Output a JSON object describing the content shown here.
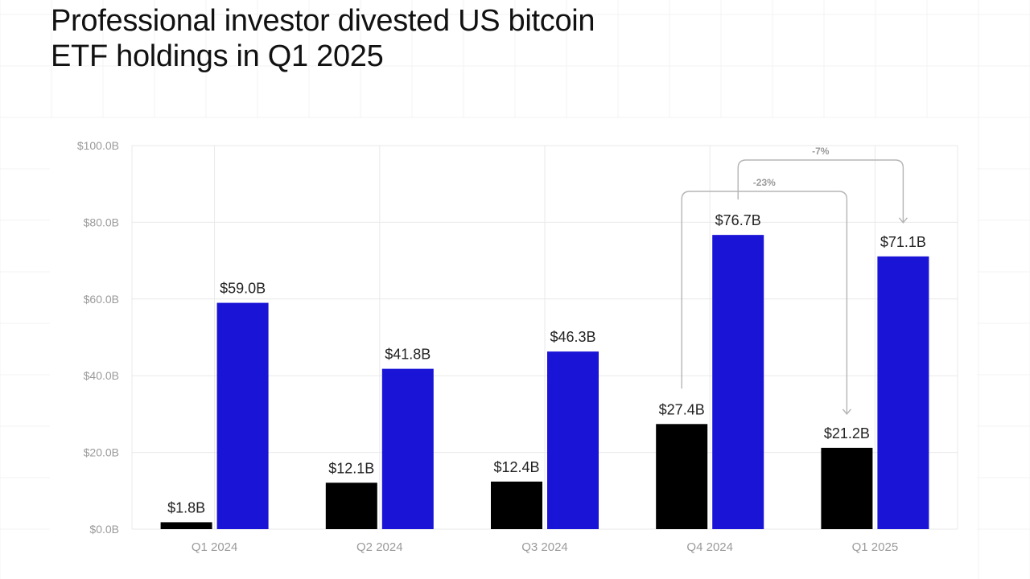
{
  "title": {
    "line1": "Professional investor divested US bitcoin",
    "line2": "ETF holdings in Q1 2025"
  },
  "colors": {
    "series_a": "#000000",
    "series_b": "#1a14d6",
    "label": "#222222",
    "tick": "#9a9a9a",
    "grid": "#e9e9e9",
    "annotation": "#b5b5b5",
    "annotation_text": "#9a9a9a"
  },
  "chart_data": {
    "type": "bar",
    "title": "Professional investor divested US bitcoin ETF holdings in Q1 2025",
    "xlabel": "",
    "ylabel": "",
    "categories": [
      "Q1 2024",
      "Q2 2024",
      "Q3 2024",
      "Q4 2024",
      "Q1 2025"
    ],
    "series": [
      {
        "name": "Series A (black)",
        "values": [
          1.8,
          12.1,
          12.4,
          27.4,
          21.2
        ],
        "labels": [
          "$1.8B",
          "$12.1B",
          "$12.4B",
          "$27.4B",
          "$21.2B"
        ]
      },
      {
        "name": "Series B (blue)",
        "values": [
          59.0,
          41.8,
          46.3,
          76.7,
          71.1
        ],
        "labels": [
          "$59.0B",
          "$41.8B",
          "$46.3B",
          "$76.7B",
          "$71.1B"
        ]
      }
    ],
    "ylim": [
      0,
      100
    ],
    "yticks": [
      0,
      20,
      40,
      60,
      80,
      100
    ],
    "ytick_labels": [
      "$0.0B",
      "$20.0B",
      "$40.0B",
      "$60.0B",
      "$80.0B",
      "$100.0B"
    ],
    "grid": true,
    "legend": "none",
    "annotations": [
      {
        "label": "-23%",
        "from_category": "Q4 2024",
        "from_series": 0,
        "to_category": "Q1 2025",
        "to_series": 0
      },
      {
        "label": "-7%",
        "from_category": "Q4 2024",
        "from_series": 1,
        "to_category": "Q1 2025",
        "to_series": 1
      }
    ]
  }
}
